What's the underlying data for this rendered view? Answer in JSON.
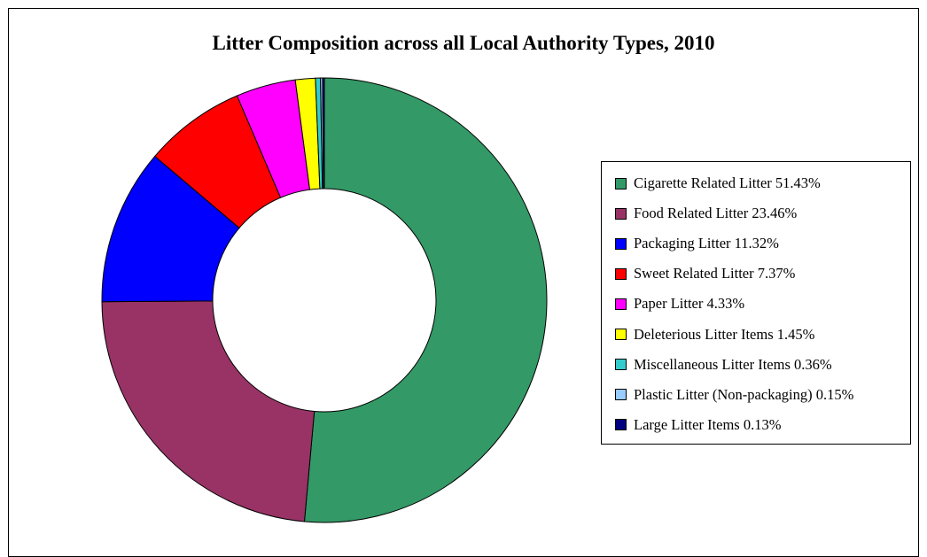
{
  "chart_data": {
    "type": "pie",
    "variant": "donut",
    "title": "Litter Composition across all Local Authority Types, 2010",
    "legend_position": "right",
    "slices": [
      {
        "label": "Cigarette Related Litter 51.43%",
        "value": 51.43,
        "color": "#339966"
      },
      {
        "label": "Food Related Litter 23.46%",
        "value": 23.46,
        "color": "#993366"
      },
      {
        "label": "Packaging Litter 11.32%",
        "value": 11.32,
        "color": "#0000FF"
      },
      {
        "label": "Sweet Related Litter 7.37%",
        "value": 7.37,
        "color": "#FF0000"
      },
      {
        "label": "Paper Litter 4.33%",
        "value": 4.33,
        "color": "#FF00FF"
      },
      {
        "label": "Deleterious Litter Items 1.45%",
        "value": 1.45,
        "color": "#FFFF00"
      },
      {
        "label": "Miscellaneous Litter Items 0.36%",
        "value": 0.36,
        "color": "#33CCCC"
      },
      {
        "label": "Plastic Litter (Non-packaging) 0.15%",
        "value": 0.15,
        "color": "#99CCFF"
      },
      {
        "label": "Large Litter Items 0.13%",
        "value": 0.13,
        "color": "#000080"
      }
    ]
  }
}
